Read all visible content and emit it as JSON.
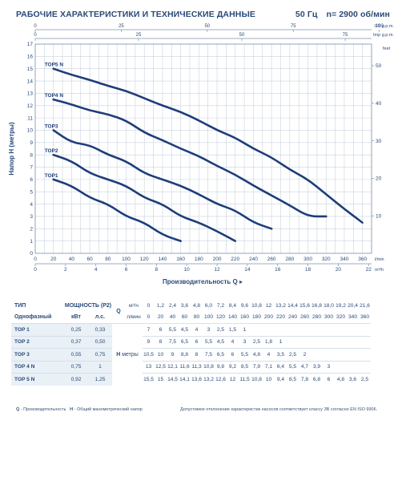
{
  "header": {
    "title": "РАБОЧИЕ ХАРАКТЕРИСТИКИ И ТЕХНИЧЕСКИЕ ДАННЫЕ",
    "freq": "50 Гц",
    "speed": "n= 2900 об/мин"
  },
  "chart_data": {
    "type": "line",
    "ylabel": "Напор H (метры)",
    "xlabel": "Производительность Q",
    "ylim": [
      0,
      17
    ],
    "xlim": [
      0,
      370
    ],
    "y_ticks": [
      0,
      1,
      2,
      3,
      4,
      5,
      6,
      7,
      8,
      9,
      10,
      11,
      12,
      13,
      14,
      15,
      16,
      17
    ],
    "x_ticks": [
      0,
      20,
      40,
      60,
      80,
      100,
      120,
      140,
      160,
      180,
      200,
      220,
      240,
      260,
      280,
      300,
      320,
      340,
      360
    ],
    "x_unit": "l/min",
    "x_m3h_ticks": [
      0,
      2,
      4,
      6,
      8,
      10,
      12,
      14,
      16,
      18,
      20,
      22
    ],
    "x_m3h_unit": "m³/h",
    "x_usgpm_ticks": [
      0,
      25,
      50,
      75,
      100
    ],
    "x_usgpm_unit": "US g.p.m.",
    "x_impgpm_ticks": [
      0,
      25,
      50,
      75
    ],
    "x_impgpm_unit": "Imp g.p.m.",
    "y_feet_ticks": [
      10,
      20,
      30,
      40,
      50
    ],
    "y_feet_unit": "feet",
    "grid": true,
    "series": [
      {
        "name": "TOP1",
        "x": [
          20,
          40,
          60,
          80,
          100,
          120,
          140,
          160
        ],
        "y": [
          6.0,
          5.5,
          4.5,
          4,
          3,
          2.5,
          1.5,
          1
        ]
      },
      {
        "name": "TOP2",
        "x": [
          20,
          40,
          60,
          80,
          100,
          120,
          140,
          160,
          180,
          200,
          220
        ],
        "y": [
          8.0,
          7.5,
          6.5,
          6,
          5.5,
          4.5,
          4,
          3,
          2.5,
          1.8,
          1
        ]
      },
      {
        "name": "TOP3",
        "x": [
          20,
          40,
          60,
          80,
          100,
          120,
          140,
          160,
          180,
          200,
          220,
          240,
          260
        ],
        "y": [
          10.0,
          9,
          8.8,
          8,
          7.5,
          6.5,
          6,
          5.5,
          4.8,
          4,
          3.5,
          2.5,
          2
        ]
      },
      {
        "name": "TOP4 N",
        "x": [
          20,
          40,
          60,
          80,
          100,
          120,
          140,
          160,
          180,
          200,
          220,
          240,
          260,
          280,
          300,
          320
        ],
        "y": [
          12.5,
          12.1,
          11.6,
          11.3,
          10.8,
          9.8,
          9.2,
          8.5,
          7.9,
          7.1,
          6.4,
          5.5,
          4.7,
          3.9,
          3,
          3
        ]
      },
      {
        "name": "TOP5 N",
        "x": [
          20,
          40,
          60,
          80,
          100,
          120,
          140,
          160,
          180,
          200,
          220,
          240,
          260,
          280,
          300,
          320,
          340,
          360
        ],
        "y": [
          15.0,
          14.5,
          14.1,
          13.6,
          13.2,
          12.6,
          12,
          11.5,
          10.8,
          10,
          9.4,
          8.5,
          7.8,
          6.8,
          6,
          4.8,
          3.6,
          2.5
        ]
      }
    ]
  },
  "table": {
    "h_type": "ТИП",
    "h_power": "МОЩНОСТЬ (P2)",
    "h_single": "Однофазный",
    "h_kw": "кВт",
    "h_hp": "л.с.",
    "h_q": "Q",
    "h_m3h": "м³/ч",
    "h_lmin": "л/мин",
    "h_h": "H",
    "h_meters": "метры",
    "m3h": [
      "0",
      "1,2",
      "2,4",
      "3,6",
      "4,8",
      "6,0",
      "7,2",
      "8,4",
      "9,6",
      "10,8",
      "12",
      "13,2",
      "14,4",
      "15,6",
      "16,8",
      "18,0",
      "19,2",
      "20,4",
      "21,6"
    ],
    "lmin": [
      "0",
      "20",
      "40",
      "60",
      "80",
      "100",
      "120",
      "140",
      "160",
      "180",
      "200",
      "220",
      "240",
      "260",
      "280",
      "300",
      "320",
      "340",
      "360"
    ],
    "rows": [
      {
        "name": "TOP 1",
        "kw": "0,25",
        "hp": "0,33",
        "h": [
          "7",
          "6",
          "5,5",
          "4,5",
          "4",
          "3",
          "2,5",
          "1,5",
          "1",
          "",
          "",
          "",
          "",
          "",
          "",
          "",
          "",
          "",
          ""
        ]
      },
      {
        "name": "TOP 2",
        "kw": "0,37",
        "hp": "0,50",
        "h": [
          "9",
          "8",
          "7,5",
          "6,5",
          "6",
          "5,5",
          "4,5",
          "4",
          "3",
          "2,5",
          "1,8",
          "1",
          "",
          "",
          "",
          "",
          "",
          "",
          ""
        ]
      },
      {
        "name": "TOP 3",
        "kw": "0,55",
        "hp": "0,75",
        "h": [
          "10,5",
          "10",
          "9",
          "8,8",
          "8",
          "7,5",
          "6,5",
          "6",
          "5,5",
          "4,8",
          "4",
          "3,5",
          "2,5",
          "2",
          "",
          "",
          "",
          "",
          ""
        ]
      },
      {
        "name": "TOP 4 N",
        "kw": "0,75",
        "hp": "1",
        "h": [
          "13",
          "12,5",
          "12,1",
          "11,6",
          "11,3",
          "10,8",
          "9,8",
          "9,2",
          "8,5",
          "7,9",
          "7,1",
          "6,4",
          "5,5",
          "4,7",
          "3,9",
          "3",
          "",
          "",
          ""
        ]
      },
      {
        "name": "TOP 5 N",
        "kw": "0,92",
        "hp": "1,25",
        "h": [
          "15,5",
          "15",
          "14,5",
          "14,1",
          "13,6",
          "13,2",
          "12,6",
          "12",
          "11,5",
          "10,8",
          "10",
          "9,4",
          "8,5",
          "7,8",
          "6,8",
          "6",
          "4,8",
          "3,6",
          "2,5"
        ]
      }
    ]
  },
  "footer": {
    "q_key": "Q",
    "q_text": " - Производительность",
    "h_key": "H",
    "h_text": " - Общий манометрический напор",
    "tolerance": "Допустимое отклонение характеристик насосов соответствует классу 3B согласно EN ISO 9906."
  },
  "colors": {
    "curve": "#1d3d7a",
    "text": "#2a4a78",
    "grid": "#c8d3df",
    "shade": "#e9f0f6"
  }
}
